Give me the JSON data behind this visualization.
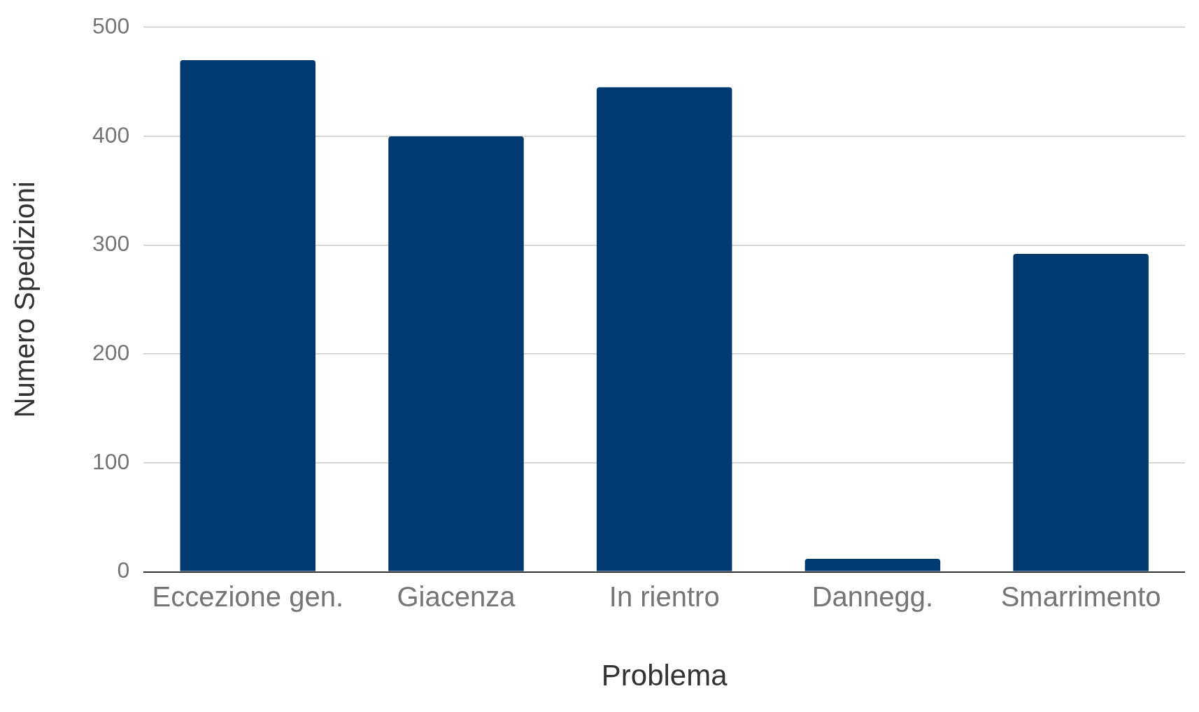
{
  "chart_data": {
    "type": "bar",
    "xlabel": "Problema",
    "ylabel": "Numero Spedizioni",
    "categories": [
      "Eccezione gen.",
      "Giacenza",
      "In rientro",
      "Dannegg.",
      "Smarrimento"
    ],
    "values": [
      470,
      400,
      445,
      12,
      292
    ],
    "color": "#003a70",
    "ylim": [
      0,
      500
    ],
    "yticks": [
      0,
      100,
      200,
      300,
      400,
      500
    ],
    "grid": "y"
  }
}
